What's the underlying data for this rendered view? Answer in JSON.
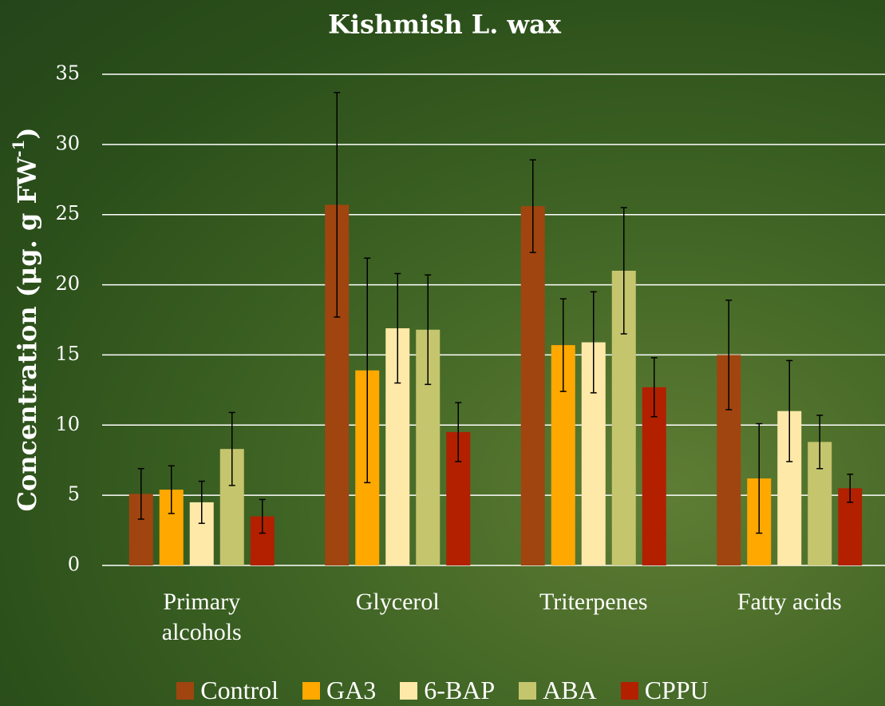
{
  "chart_data": {
    "type": "bar",
    "title": "Kishmish L. wax",
    "y_label": {
      "text": "Concentration (μg. g FW",
      "superscript": "-1",
      "suffix": ")"
    },
    "categories": [
      "Primary alcohols",
      "Glycerol",
      "Triterpenes",
      "Fatty acids"
    ],
    "series": [
      {
        "name": "Control",
        "color": "#a0450f",
        "values": [
          5.1,
          25.7,
          25.6,
          15.0
        ],
        "errors": [
          1.8,
          8.0,
          3.3,
          3.9
        ]
      },
      {
        "name": "GA3",
        "color": "#ffa800",
        "values": [
          5.4,
          13.9,
          15.7,
          6.2
        ],
        "errors": [
          1.7,
          8.0,
          3.3,
          3.9
        ]
      },
      {
        "name": "6-BAP",
        "color": "#ffe9a8",
        "values": [
          4.5,
          16.9,
          15.9,
          11.0
        ],
        "errors": [
          1.5,
          3.9,
          3.6,
          3.6
        ]
      },
      {
        "name": "ABA",
        "color": "#c5c56e",
        "values": [
          8.3,
          16.8,
          21.0,
          8.8
        ],
        "errors": [
          2.6,
          3.9,
          4.5,
          1.9
        ]
      },
      {
        "name": "CPPU",
        "color": "#b22000",
        "values": [
          3.5,
          9.5,
          12.7,
          5.5
        ],
        "errors": [
          1.2,
          2.1,
          2.1,
          1.0
        ]
      }
    ],
    "ylim": [
      0,
      35
    ],
    "yticks": [
      0,
      5,
      10,
      15,
      20,
      25,
      30,
      35
    ],
    "grid": true,
    "legend": "bottom"
  }
}
